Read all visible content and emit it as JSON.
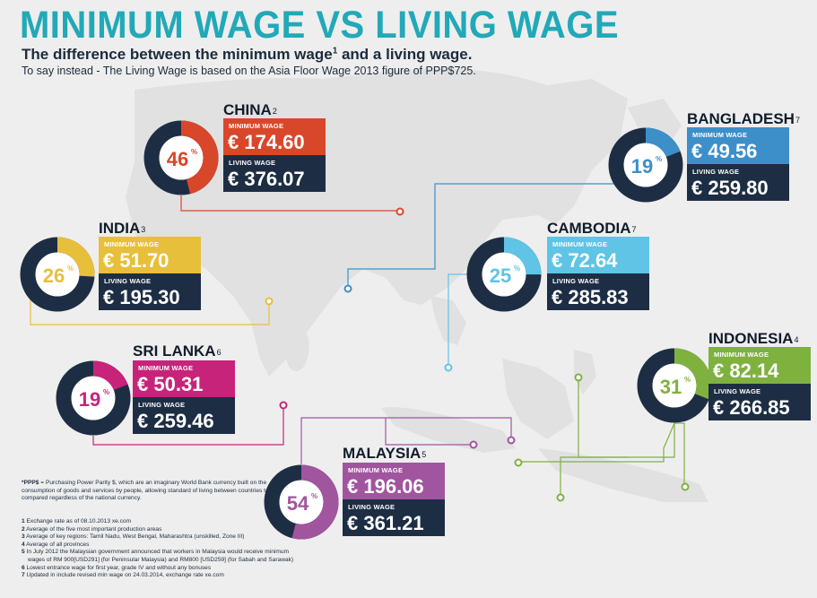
{
  "header": {
    "title": "MINIMUM WAGE VS LIVING WAGE",
    "subtitle_main": "The difference between the minimum wage",
    "subtitle_sup": "1",
    "subtitle_tail": " and a living wage.",
    "subtitle2": "To say instead - The Living Wage is based on the Asia Floor Wage 2013 figure of PPP$725."
  },
  "labels": {
    "minimum": "MINIMUM WAGE",
    "living": "LIVING WAGE"
  },
  "chart_data": {
    "type": "pie",
    "currency": "€",
    "series": [
      {
        "name": "CHINA",
        "note": "2",
        "percent": 46,
        "minimum_wage": "174.60",
        "living_wage": "376.07",
        "color": "#d9472b"
      },
      {
        "name": "BANGLADESH",
        "note": "7",
        "percent": 19,
        "minimum_wage": "49.56",
        "living_wage": "259.80",
        "color": "#3d8fc9"
      },
      {
        "name": "INDIA",
        "note": "3",
        "percent": 26,
        "minimum_wage": "51.70",
        "living_wage": "195.30",
        "color": "#e8bf3a"
      },
      {
        "name": "CAMBODIA",
        "note": "7",
        "percent": 25,
        "minimum_wage": "72.64",
        "living_wage": "285.83",
        "color": "#5fc4e6"
      },
      {
        "name": "SRI LANKA",
        "note": "6",
        "percent": 19,
        "minimum_wage": "50.31",
        "living_wage": "259.46",
        "color": "#c8237a"
      },
      {
        "name": "INDONESIA",
        "note": "4",
        "percent": 31,
        "minimum_wage": "82.14",
        "living_wage": "266.85",
        "color": "#7fb13f"
      },
      {
        "name": "MALAYSIA",
        "note": "5",
        "percent": 54,
        "minimum_wage": "196.06",
        "living_wage": "361.21",
        "color": "#a0559e"
      }
    ]
  },
  "footnotes": {
    "ppp_term": "*PPP$",
    "ppp_text": " = Purchasing Power Parity $, which are an imaginary World Bank currency built on the consumption of goods and services by people, allowing standard of living between countries to be compared regardless of the national currency.",
    "notes": [
      {
        "num": "1",
        "text": "Exchange rate as of 08.10.2013 xe.com"
      },
      {
        "num": "2",
        "text": "Average of the five most important production areas"
      },
      {
        "num": "3",
        "text": "Average of key regions: Tamil Nadu, West Bengal, Maharashtra (unskilled, Zone III)"
      },
      {
        "num": "4",
        "text": "Average of all provinces"
      },
      {
        "num": "5",
        "text": "In July 2012 the Malaysian government announced that workers in Malaysia would receive minimum"
      },
      {
        "num": "",
        "text": "wages of RM 900[USD291] (for Peninsular Malaysia) and RM800 [USD259] (for Sabah and Sarawak)"
      },
      {
        "num": "6",
        "text": "Lowest entrance wage for first year, grade IV and without any bonuses"
      },
      {
        "num": "7",
        "text": "Updated in include revised min wage on 24.03.2014, exchange rate xe.com"
      }
    ]
  }
}
